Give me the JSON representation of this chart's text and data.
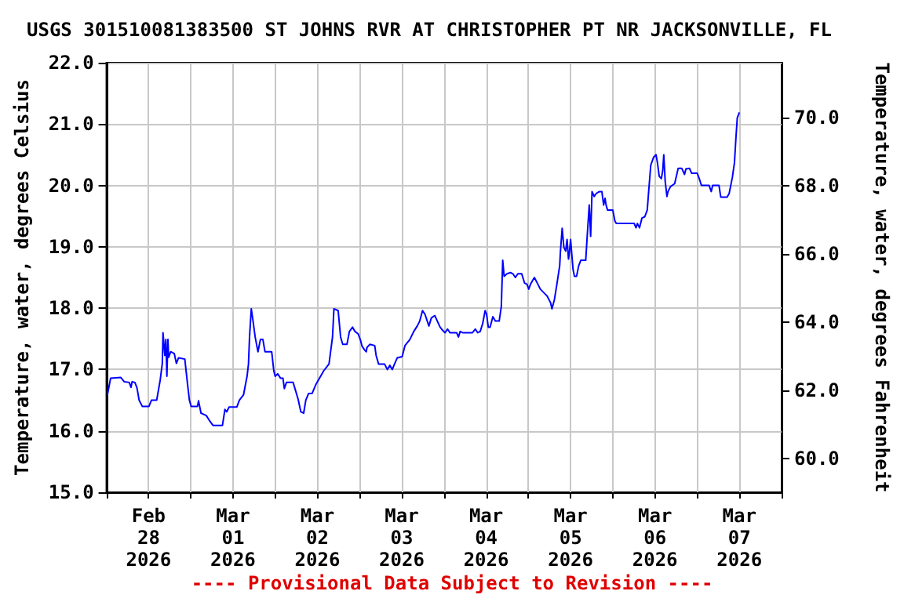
{
  "chart_data": {
    "type": "line",
    "title": "USGS 301510081383500 ST JOHNS RVR AT CHRISTOPHER PT NR JACKSONVILLE, FL",
    "ylabel": "Temperature, water, degrees Celsius",
    "y2label": "Temperature, water, degrees Fahrenheit",
    "annotations": [
      "---- Provisional Data Subject to Revision ----"
    ],
    "xlim": [
      "2026-02-28",
      "2026-03-08"
    ],
    "xticks": [
      {
        "value": "2026-02-28",
        "label": null
      },
      {
        "value": "2026-02-28T12:00",
        "label": "Feb\n28\n2026"
      },
      {
        "value": "2026-03-01",
        "label": null
      },
      {
        "value": "2026-03-01T12:00",
        "label": "Mar\n01\n2026"
      },
      {
        "value": "2026-03-02",
        "label": null
      },
      {
        "value": "2026-03-02T12:00",
        "label": "Mar\n02\n2026"
      },
      {
        "value": "2026-03-03",
        "label": null
      },
      {
        "value": "2026-03-03T12:00",
        "label": "Mar\n03\n2026"
      },
      {
        "value": "2026-03-04",
        "label": null
      },
      {
        "value": "2026-03-04T12:00",
        "label": "Mar\n04\n2026"
      },
      {
        "value": "2026-03-05",
        "label": null
      },
      {
        "value": "2026-03-05T12:00",
        "label": "Mar\n05\n2026"
      },
      {
        "value": "2026-03-06",
        "label": null
      },
      {
        "value": "2026-03-06T12:00",
        "label": "Mar\n06\n2026"
      },
      {
        "value": "2026-03-07",
        "label": null
      },
      {
        "value": "2026-03-07T12:00",
        "label": "Mar\n07\n2026"
      },
      {
        "value": "2026-03-08",
        "label": null
      }
    ],
    "ylim": [
      15,
      22
    ],
    "yticks": [
      {
        "value": 15,
        "label": "15.0"
      },
      {
        "value": 16,
        "label": "16.0"
      },
      {
        "value": 17,
        "label": "17.0"
      },
      {
        "value": 18,
        "label": "18.0"
      },
      {
        "value": 19,
        "label": "19.0"
      },
      {
        "value": 20,
        "label": "20.0"
      },
      {
        "value": 21,
        "label": "21.0"
      },
      {
        "value": 22,
        "label": "22.0"
      }
    ],
    "y2lim": [
      59,
      71.6
    ],
    "y2ticks": [
      {
        "value": 60,
        "label": "60.0"
      },
      {
        "value": 62,
        "label": "62.0"
      },
      {
        "value": 64,
        "label": "64.0"
      },
      {
        "value": 66,
        "label": "66.0"
      },
      {
        "value": 68,
        "label": "68.0"
      },
      {
        "value": 70,
        "label": "70.0"
      }
    ],
    "grid": true,
    "marker": "none",
    "line_style": "solid",
    "series": [
      {
        "color": "#0000ff",
        "x": [
          "2026-02-28T00:18",
          "2026-02-28T01:12",
          "2026-02-28T04:06",
          "2026-02-28T05:06",
          "2026-02-28T06:30",
          "2026-02-28T07:00",
          "2026-02-28T07:18",
          "2026-02-28T08:06",
          "2026-02-28T08:42",
          "2026-02-28T09:18",
          "2026-02-28T10:12",
          "2026-02-28T12:06",
          "2026-02-28T12:48",
          "2026-02-28T14:18",
          "2026-02-28T15:18",
          "2026-02-28T15:54",
          "2026-02-28T16:06",
          "2026-02-28T16:36",
          "2026-02-28T16:54",
          "2026-02-28T17:12",
          "2026-02-28T17:30",
          "2026-02-28T17:42",
          "2026-02-28T18:18",
          "2026-02-28T19:18",
          "2026-02-28T19:54",
          "2026-02-28T20:30",
          "2026-02-28T22:18",
          "2026-02-28T23:00",
          "2026-02-28T23:36",
          "2026-03-01T00:06",
          "2026-03-01T01:54",
          "2026-03-01T02:12",
          "2026-03-01T02:54",
          "2026-03-01T04:24",
          "2026-03-01T05:24",
          "2026-03-01T06:18",
          "2026-03-01T09:00",
          "2026-03-01T09:42",
          "2026-03-01T10:12",
          "2026-03-01T10:54",
          "2026-03-01T13:06",
          "2026-03-01T13:48",
          "2026-03-01T15:00",
          "2026-03-01T16:00",
          "2026-03-01T16:24",
          "2026-03-01T16:42",
          "2026-03-01T17:12",
          "2026-03-01T17:42",
          "2026-03-01T18:18",
          "2026-03-01T19:06",
          "2026-03-01T19:48",
          "2026-03-01T20:30",
          "2026-03-01T21:06",
          "2026-03-01T23:00",
          "2026-03-01T23:36",
          "2026-03-02T00:00",
          "2026-03-02T00:42",
          "2026-03-02T01:30",
          "2026-03-02T02:12",
          "2026-03-02T02:36",
          "2026-03-02T03:12",
          "2026-03-02T05:06",
          "2026-03-02T06:30",
          "2026-03-02T07:18",
          "2026-03-02T08:06",
          "2026-03-02T08:42",
          "2026-03-02T09:30",
          "2026-03-02T10:30",
          "2026-03-02T11:36",
          "2026-03-02T13:48",
          "2026-03-02T15:18",
          "2026-03-02T16:18",
          "2026-03-02T16:42",
          "2026-03-02T17:54",
          "2026-03-02T18:36",
          "2026-03-02T19:12",
          "2026-03-02T20:24",
          "2026-03-02T21:06",
          "2026-03-02T22:00",
          "2026-03-02T22:42",
          "2026-03-02T23:36",
          "2026-03-03T00:18",
          "2026-03-03T00:42",
          "2026-03-03T01:24",
          "2026-03-03T01:54",
          "2026-03-03T02:06",
          "2026-03-03T02:54",
          "2026-03-03T04:18",
          "2026-03-03T04:42",
          "2026-03-03T05:24",
          "2026-03-03T07:06",
          "2026-03-03T07:54",
          "2026-03-03T08:36",
          "2026-03-03T09:18",
          "2026-03-03T10:00",
          "2026-03-03T10:42",
          "2026-03-03T12:06",
          "2026-03-03T12:54",
          "2026-03-03T14:18",
          "2026-03-03T15:24",
          "2026-03-03T16:24",
          "2026-03-03T17:06",
          "2026-03-03T17:54",
          "2026-03-03T18:36",
          "2026-03-03T19:42",
          "2026-03-03T20:24",
          "2026-03-03T21:24",
          "2026-03-03T22:06",
          "2026-03-03T22:54",
          "2026-03-03T23:36",
          "2026-03-04T00:18",
          "2026-03-04T01:00",
          "2026-03-04T01:42",
          "2026-03-04T03:36",
          "2026-03-04T04:06",
          "2026-03-04T04:36",
          "2026-03-04T05:18",
          "2026-03-04T08:06",
          "2026-03-04T08:54",
          "2026-03-04T09:36",
          "2026-03-04T10:18",
          "2026-03-04T11:00",
          "2026-03-04T11:42",
          "2026-03-04T12:06",
          "2026-03-04T12:36",
          "2026-03-04T13:06",
          "2026-03-04T13:54",
          "2026-03-04T14:36",
          "2026-03-04T15:42",
          "2026-03-04T16:18",
          "2026-03-04T16:42",
          "2026-03-04T17:06",
          "2026-03-04T17:54",
          "2026-03-04T18:54",
          "2026-03-04T19:36",
          "2026-03-04T20:18",
          "2026-03-04T21:00",
          "2026-03-04T22:06",
          "2026-03-04T22:54",
          "2026-03-04T23:36",
          "2026-03-05T00:06",
          "2026-03-05T00:36",
          "2026-03-05T01:42",
          "2026-03-05T02:42",
          "2026-03-05T03:24",
          "2026-03-05T04:36",
          "2026-03-05T05:18",
          "2026-03-05T06:18",
          "2026-03-05T06:42",
          "2026-03-05T07:24",
          "2026-03-05T08:06",
          "2026-03-05T08:54",
          "2026-03-05T09:06",
          "2026-03-05T09:36",
          "2026-03-05T10:06",
          "2026-03-05T10:36",
          "2026-03-05T11:00",
          "2026-03-05T11:24",
          "2026-03-05T11:42",
          "2026-03-05T12:00",
          "2026-03-05T12:42",
          "2026-03-05T13:06",
          "2026-03-05T13:42",
          "2026-03-05T14:18",
          "2026-03-05T14:54",
          "2026-03-05T16:18",
          "2026-03-05T16:42",
          "2026-03-05T17:18",
          "2026-03-05T17:42",
          "2026-03-05T18:06",
          "2026-03-05T18:42",
          "2026-03-05T19:18",
          "2026-03-05T20:12",
          "2026-03-05T20:54",
          "2026-03-05T21:24",
          "2026-03-05T21:48",
          "2026-03-05T22:06",
          "2026-03-05T22:30",
          "2026-03-06T00:00",
          "2026-03-06T00:36",
          "2026-03-06T01:00",
          "2026-03-06T06:06",
          "2026-03-06T06:36",
          "2026-03-06T07:00",
          "2026-03-06T07:36",
          "2026-03-06T08:18",
          "2026-03-06T09:06",
          "2026-03-06T09:48",
          "2026-03-06T10:12",
          "2026-03-06T10:48",
          "2026-03-06T11:36",
          "2026-03-06T12:18",
          "2026-03-06T12:42",
          "2026-03-06T13:12",
          "2026-03-06T13:48",
          "2026-03-06T14:12",
          "2026-03-06T14:30",
          "2026-03-06T14:54",
          "2026-03-06T15:24",
          "2026-03-06T15:42",
          "2026-03-06T16:24",
          "2026-03-06T17:36",
          "2026-03-06T18:12",
          "2026-03-06T18:36",
          "2026-03-06T19:36",
          "2026-03-06T20:24",
          "2026-03-06T20:48",
          "2026-03-06T21:48",
          "2026-03-06T22:24",
          "2026-03-07T00:00",
          "2026-03-07T00:36",
          "2026-03-07T01:12",
          "2026-03-07T03:24",
          "2026-03-07T04:00",
          "2026-03-07T04:24",
          "2026-03-07T06:12",
          "2026-03-07T06:42",
          "2026-03-07T08:30",
          "2026-03-07T09:06",
          "2026-03-07T10:00",
          "2026-03-07T10:36",
          "2026-03-07T11:00",
          "2026-03-07T11:24",
          "2026-03-07T12:00"
        ],
        "values": [
          16.59,
          16.86,
          16.87,
          16.8,
          16.79,
          16.71,
          16.8,
          16.79,
          16.7,
          16.5,
          16.4,
          16.4,
          16.5,
          16.5,
          16.83,
          17.1,
          17.6,
          17.23,
          17.49,
          16.89,
          17.49,
          17.2,
          17.29,
          17.26,
          17.1,
          17.19,
          17.17,
          16.8,
          16.5,
          16.4,
          16.4,
          16.49,
          16.29,
          16.25,
          16.16,
          16.09,
          16.09,
          16.35,
          16.31,
          16.39,
          16.39,
          16.5,
          16.59,
          16.89,
          17.09,
          17.53,
          17.99,
          17.79,
          17.53,
          17.29,
          17.49,
          17.49,
          17.29,
          17.29,
          16.98,
          16.89,
          16.93,
          16.86,
          16.86,
          16.69,
          16.79,
          16.79,
          16.52,
          16.31,
          16.29,
          16.5,
          16.61,
          16.61,
          16.76,
          16.98,
          17.09,
          17.53,
          17.99,
          17.96,
          17.53,
          17.41,
          17.41,
          17.62,
          17.69,
          17.62,
          17.58,
          17.47,
          17.38,
          17.32,
          17.29,
          17.36,
          17.41,
          17.39,
          17.23,
          17.09,
          17.09,
          17,
          17.07,
          17,
          17.1,
          17.19,
          17.21,
          17.39,
          17.49,
          17.62,
          17.71,
          17.79,
          17.96,
          17.9,
          17.71,
          17.84,
          17.88,
          17.79,
          17.69,
          17.64,
          17.6,
          17.66,
          17.6,
          17.6,
          17.53,
          17.62,
          17.6,
          17.6,
          17.66,
          17.6,
          17.62,
          17.75,
          17.96,
          17.9,
          17.69,
          17.69,
          17.86,
          17.79,
          17.79,
          18.03,
          18.78,
          18.52,
          18.56,
          18.58,
          18.56,
          18.5,
          18.56,
          18.56,
          18.41,
          18.39,
          18.31,
          18.39,
          18.5,
          18.39,
          18.31,
          18.24,
          18.2,
          18.09,
          17.99,
          18.14,
          18.39,
          18.69,
          18.91,
          19.3,
          18.99,
          18.93,
          19.12,
          18.8,
          18.93,
          19.12,
          18.63,
          18.52,
          18.52,
          18.69,
          18.78,
          18.78,
          19.15,
          19.68,
          19.17,
          19.9,
          19.82,
          19.87,
          19.9,
          19.9,
          19.68,
          19.79,
          19.68,
          19.6,
          19.6,
          19.42,
          19.38,
          19.38,
          19.31,
          19.38,
          19.31,
          19.47,
          19.49,
          19.6,
          19.9,
          20.33,
          20.46,
          20.5,
          20.37,
          20.15,
          20.11,
          20.24,
          20.5,
          20.07,
          19.82,
          19.9,
          19.98,
          20.03,
          20.18,
          20.28,
          20.28,
          20.18,
          20.27,
          20.28,
          20.2,
          20.2,
          20.11,
          20,
          20,
          19.9,
          20,
          20,
          19.81,
          19.81,
          19.87,
          20.13,
          20.37,
          20.76,
          21.1,
          21.19
        ]
      }
    ]
  }
}
